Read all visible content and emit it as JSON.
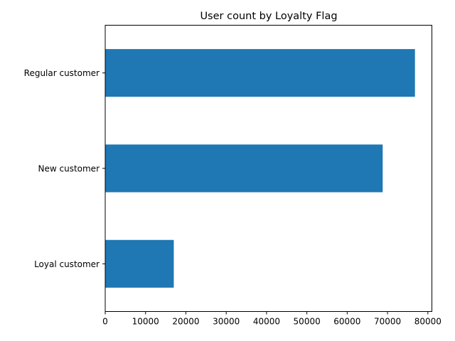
{
  "chart_data": {
    "type": "bar",
    "orientation": "horizontal",
    "title": "User count by Loyalty Flag",
    "xlabel": "",
    "ylabel": "",
    "categories": [
      "Loyal customer",
      "New customer",
      "Regular customer"
    ],
    "values": [
      17000,
      68800,
      76800
    ],
    "xlim": [
      0,
      81000
    ],
    "xticks": [
      0,
      10000,
      20000,
      30000,
      40000,
      50000,
      60000,
      70000,
      80000
    ],
    "grid": false,
    "legend": "none",
    "bar_color": "#1f77b4"
  }
}
